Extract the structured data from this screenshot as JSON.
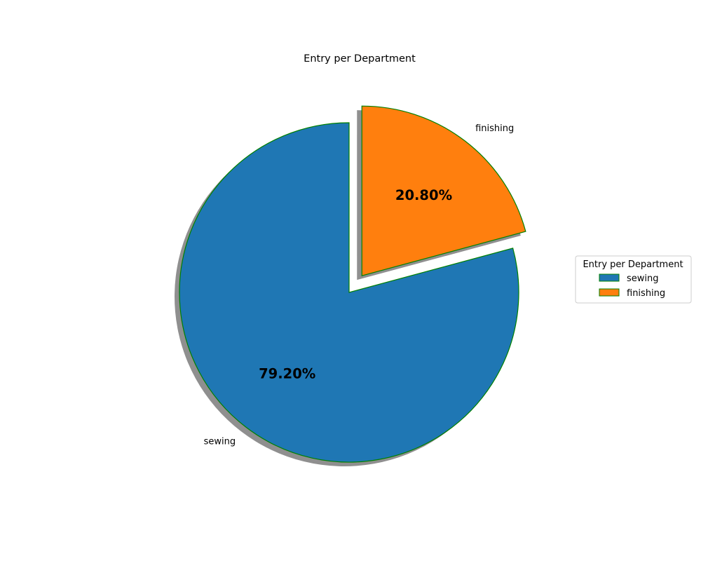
{
  "chart_data": {
    "type": "pie",
    "title": "Entry per Department",
    "categories": [
      "sewing",
      "finishing"
    ],
    "values": [
      79.2,
      20.8
    ],
    "percent_labels": [
      "79.20%",
      "20.80%"
    ],
    "colors": [
      "#1f77b4",
      "#ff7f0e"
    ],
    "edge_color": "#008000",
    "exploded": [
      "finishing"
    ],
    "shadow": true,
    "legend": {
      "title": "Entry per Department",
      "placement": "center-right",
      "entries": [
        "sewing",
        "finishing"
      ]
    }
  }
}
